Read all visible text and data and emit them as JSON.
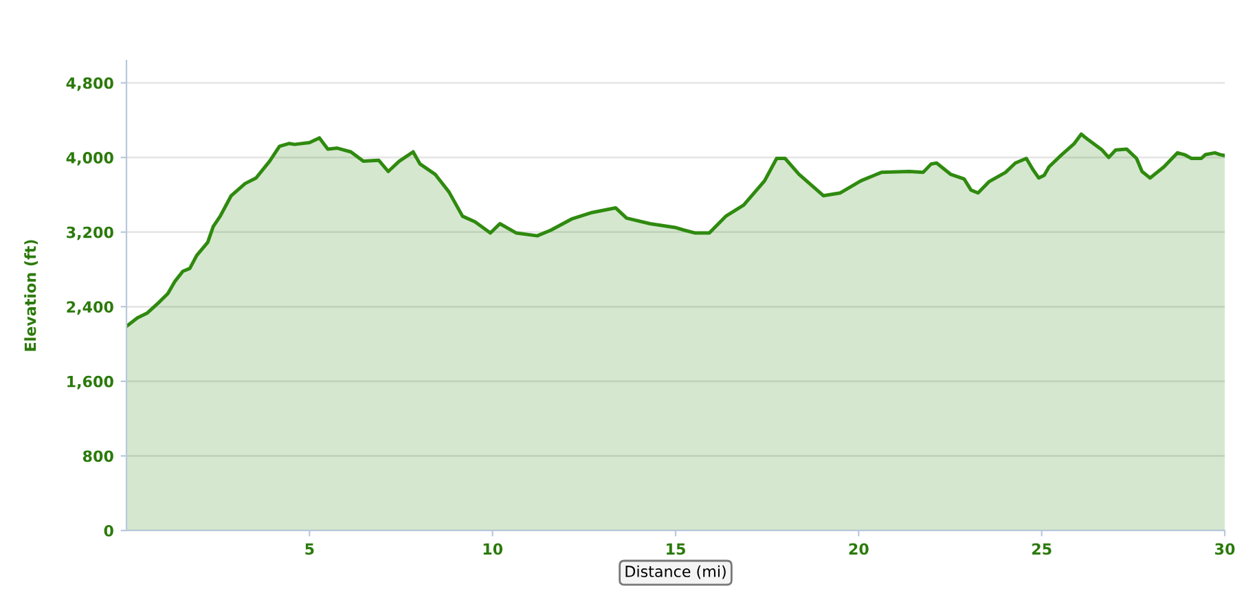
{
  "chart_data": {
    "type": "area",
    "ylabel": "Elevation (ft)",
    "xlabel": "Distance (mi)",
    "x": [
      0,
      0.3,
      0.56,
      0.87,
      1.13,
      1.32,
      1.54,
      1.73,
      1.92,
      2.22,
      2.37,
      2.56,
      2.86,
      3.24,
      3.54,
      3.91,
      4.18,
      4.44,
      4.59,
      5.0,
      5.27,
      5.5,
      5.76,
      6.13,
      6.47,
      6.89,
      7.15,
      7.45,
      7.83,
      8.02,
      8.43,
      8.81,
      9.18,
      9.52,
      9.94,
      10.2,
      10.65,
      11.22,
      11.59,
      12.16,
      12.72,
      13.36,
      13.66,
      14.3,
      14.98,
      15.24,
      15.54,
      15.92,
      16.37,
      16.86,
      17.43,
      17.76,
      17.99,
      18.37,
      19.04,
      19.5,
      20.06,
      20.62,
      21.38,
      21.76,
      21.98,
      22.13,
      22.51,
      22.88,
      23.07,
      23.26,
      23.56,
      24.01,
      24.28,
      24.58,
      24.76,
      24.92,
      25.07,
      25.2,
      25.52,
      25.89,
      26.08,
      26.27,
      26.65,
      26.83,
      27.02,
      27.32,
      27.59,
      27.74,
      27.96,
      28.34,
      28.71,
      28.9,
      29.09,
      29.36,
      29.47,
      29.73,
      29.88,
      30.0
    ],
    "series": [
      {
        "color": "#2f8a0f",
        "values": [
          2190,
          2280,
          2330,
          2440,
          2540,
          2670,
          2780,
          2810,
          2950,
          3090,
          3260,
          3370,
          3590,
          3720,
          3780,
          3960,
          4120,
          4150,
          4140,
          4160,
          4210,
          4090,
          4100,
          4060,
          3960,
          3970,
          3850,
          3960,
          4060,
          3930,
          3820,
          3630,
          3370,
          3310,
          3190,
          3290,
          3190,
          3160,
          3220,
          3340,
          3410,
          3460,
          3350,
          3290,
          3250,
          3220,
          3190,
          3190,
          3370,
          3490,
          3750,
          3990,
          3990,
          3820,
          3590,
          3620,
          3750,
          3840,
          3850,
          3840,
          3930,
          3940,
          3820,
          3770,
          3650,
          3620,
          3740,
          3840,
          3940,
          3990,
          3870,
          3780,
          3810,
          3900,
          4020,
          4150,
          4250,
          4190,
          4080,
          4000,
          4080,
          4090,
          3990,
          3850,
          3780,
          3900,
          4050,
          4030,
          3990,
          3990,
          4030,
          4050,
          4030,
          4020
        ]
      }
    ],
    "xlim": [
      0,
      30
    ],
    "xticks": [
      5,
      10,
      15,
      20,
      25,
      30
    ],
    "ylim": [
      0,
      5040
    ],
    "yticks": [
      0,
      800,
      {
        "value": 1600,
        "label": "1,600"
      },
      {
        "value": 2400,
        "label": "2,400"
      },
      {
        "value": 3200,
        "label": "3,200"
      },
      {
        "value": 4000,
        "label": "4,000"
      },
      {
        "value": 4800,
        "label": "4,800"
      }
    ],
    "grid": "y"
  }
}
